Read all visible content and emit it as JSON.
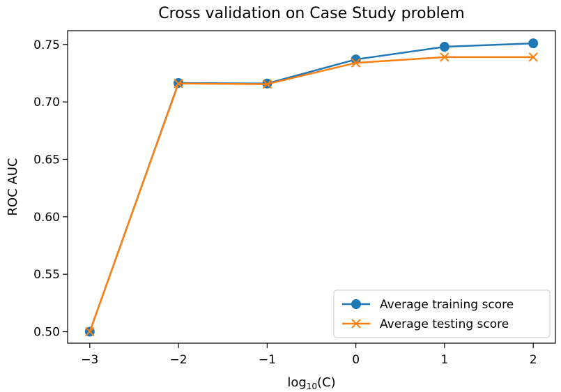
{
  "chart_data": {
    "type": "line",
    "title": "Cross validation on Case Study problem",
    "xlabel": "log",
    "xlabel_sub": "10",
    "xlabel_suffix": "(C)",
    "ylabel": "ROC AUC",
    "x": [
      -3,
      -2,
      -1,
      0,
      1,
      2
    ],
    "xlim": [
      -3.25,
      2.25
    ],
    "ylim": [
      0.49,
      0.762
    ],
    "xticks": [
      -3,
      -2,
      -1,
      0,
      1,
      2
    ],
    "xtick_labels": [
      "−3",
      "−2",
      "−1",
      "0",
      "1",
      "2"
    ],
    "yticks": [
      0.5,
      0.55,
      0.6,
      0.65,
      0.7,
      0.75
    ],
    "ytick_labels": [
      "0.50",
      "0.55",
      "0.60",
      "0.65",
      "0.70",
      "0.75"
    ],
    "grid": false,
    "legend_position": "bottom-right",
    "series": [
      {
        "name": "Average training score",
        "values": [
          0.5,
          0.7165,
          0.716,
          0.737,
          0.748,
          0.751
        ],
        "color": "#1f77b4",
        "marker": "circle"
      },
      {
        "name": "Average testing score",
        "values": [
          0.5,
          0.716,
          0.7155,
          0.734,
          0.739,
          0.739
        ],
        "color": "#ff7f0e",
        "marker": "x"
      }
    ]
  }
}
